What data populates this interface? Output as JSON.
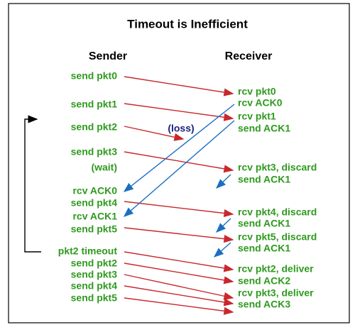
{
  "title": "Timeout is Inefficient",
  "columns": {
    "sender": "Sender",
    "receiver": "Receiver"
  },
  "sender_labels": [
    "send pkt0",
    "send pkt1",
    "send pkt2",
    "send pkt3",
    "(wait)",
    "rcv ACK0",
    "send pkt4",
    "rcv ACK1",
    "send pkt5",
    "pkt2 timeout",
    "send pkt2",
    "send pkt3",
    "send pkt4",
    "send pkt5"
  ],
  "receiver_labels": [
    "rcv pkt0",
    "rcv ACK0",
    "rcv pkt1",
    "send ACK1",
    "rcv pkt3, discard",
    "send ACK1",
    "rcv pkt4, discard",
    "send ACK1",
    "rcv pkt5, discard",
    "send ACK1",
    "rcv pkt2, deliver",
    "send ACK2",
    "rcv pkt3, deliver",
    "send ACK3"
  ],
  "annotation": "(loss)"
}
